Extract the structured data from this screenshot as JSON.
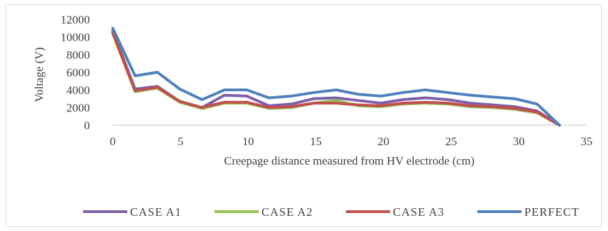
{
  "chart_data": {
    "type": "line",
    "title": "",
    "xlabel": "Creepage distance measured from HV electrode (cm)",
    "ylabel": "Voltage (V)",
    "xlim": [
      0,
      35
    ],
    "ylim": [
      0,
      12000
    ],
    "xticks": [
      "0",
      "5",
      "10",
      "15",
      "20",
      "25",
      "30",
      "35"
    ],
    "yticks": [
      "0",
      "2000",
      "4000",
      "6000",
      "8000",
      "10000",
      "12000"
    ],
    "grid": false,
    "legend_position": "bottom",
    "x": [
      0,
      1.65,
      3.3,
      4.95,
      6.6,
      8.25,
      9.9,
      11.55,
      13.2,
      14.85,
      16.5,
      18.15,
      19.8,
      21.45,
      23.1,
      24.75,
      26.4,
      28.05,
      29.7,
      31.35,
      33
    ],
    "series": [
      {
        "name": "CASE A1",
        "color": "#7f5fa8",
        "values": [
          10700,
          4100,
          4400,
          2700,
          2000,
          3400,
          3300,
          2200,
          2400,
          3000,
          3100,
          2800,
          2500,
          2900,
          3100,
          2900,
          2500,
          2300,
          2100,
          1600,
          0
        ]
      },
      {
        "name": "CASE A2",
        "color": "#92c353",
        "values": [
          10400,
          3800,
          4200,
          2600,
          1900,
          2500,
          2500,
          1900,
          2000,
          2500,
          2800,
          2200,
          2100,
          2400,
          2500,
          2400,
          2100,
          2000,
          1800,
          1400,
          0
        ]
      },
      {
        "name": "CASE A3",
        "color": "#c0504d",
        "values": [
          10500,
          3900,
          4300,
          2700,
          2000,
          2600,
          2600,
          2000,
          2100,
          2500,
          2500,
          2300,
          2200,
          2500,
          2600,
          2500,
          2200,
          2100,
          1900,
          1500,
          0
        ]
      },
      {
        "name": "PERFECT",
        "color": "#4f81bd",
        "values": [
          11000,
          5600,
          6000,
          4100,
          2900,
          4000,
          4000,
          3100,
          3300,
          3700,
          4000,
          3500,
          3300,
          3700,
          4000,
          3700,
          3400,
          3200,
          3000,
          2400,
          0
        ]
      }
    ]
  }
}
